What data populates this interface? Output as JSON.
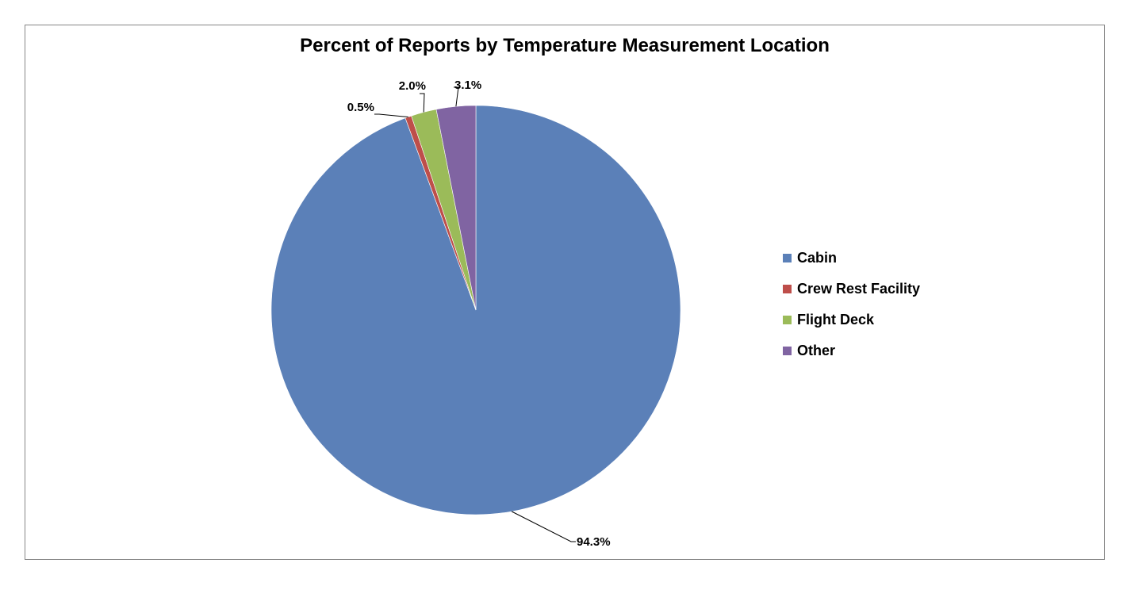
{
  "chart_data": {
    "type": "pie",
    "title": "Percent of Reports by Temperature Measurement Location",
    "start_angle_deg": 0,
    "direction": "clockwise",
    "legend_position": "right",
    "slices": [
      {
        "label": "Cabin",
        "value": 94.3,
        "display": "94.3%",
        "color": "#5B80B8"
      },
      {
        "label": "Crew Rest Facility",
        "value": 0.5,
        "display": "0.5%",
        "color": "#BE4E4A"
      },
      {
        "label": "Flight Deck",
        "value": 2.0,
        "display": "2.0%",
        "color": "#9BBB59"
      },
      {
        "label": "Other",
        "value": 3.1,
        "display": "3.1%",
        "color": "#8064A2"
      }
    ]
  }
}
